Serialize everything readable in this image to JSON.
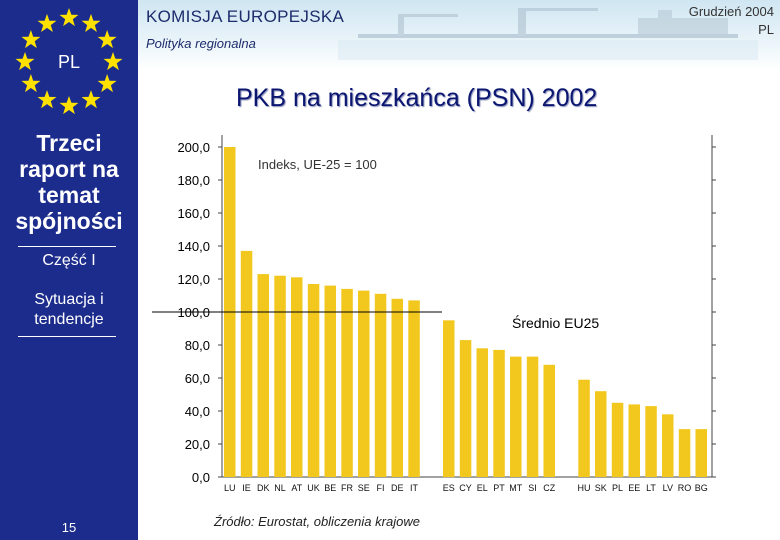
{
  "header": {
    "org_name": "KOMISJA EUROPEJSKA",
    "subtitle": "Polityka regionalna",
    "date": "Grudzień 2004",
    "lang": "PL"
  },
  "sidebar": {
    "flag_label": "PL",
    "report_title": "Trzeci raport na temat spójności",
    "part": "Część I",
    "section": "Sytuacja i tendencje",
    "page_number": "15"
  },
  "source": "Źródło: Eurostat, obliczenia krajowe",
  "colors": {
    "sidebar": "#1c2c8c",
    "bar": "#f2c81e",
    "title": "#0a1670"
  },
  "chart_data": {
    "type": "bar",
    "title": "PKB na mieszkańca (PSN) 2002",
    "subtitle": "Indeks, UE-25 = 100",
    "ylim": [
      0,
      200
    ],
    "yticks": [
      "0,0",
      "20,0",
      "40,0",
      "60,0",
      "80,0",
      "100,0",
      "120,0",
      "140,0",
      "160,0",
      "180,0",
      "200,0"
    ],
    "reference_line": {
      "value": 100,
      "label": "Średnio EU25"
    },
    "groups": [
      {
        "categories": [
          "LU",
          "IE",
          "DK",
          "NL",
          "AT",
          "UK",
          "BE",
          "FR",
          "SE",
          "FI",
          "DE",
          "IT"
        ],
        "values": [
          200,
          137,
          123,
          122,
          121,
          117,
          116,
          114,
          113,
          111,
          108,
          107
        ]
      },
      {
        "categories": [
          "ES",
          "CY",
          "EL",
          "PT",
          "MT",
          "SI",
          "CZ"
        ],
        "values": [
          95,
          83,
          78,
          77,
          73,
          73,
          68
        ]
      },
      {
        "categories": [
          "HU",
          "SK",
          "PL",
          "EE",
          "LT",
          "LV",
          "RO",
          "BG"
        ],
        "values": [
          59,
          52,
          45,
          44,
          43,
          38,
          29,
          29
        ]
      }
    ]
  }
}
